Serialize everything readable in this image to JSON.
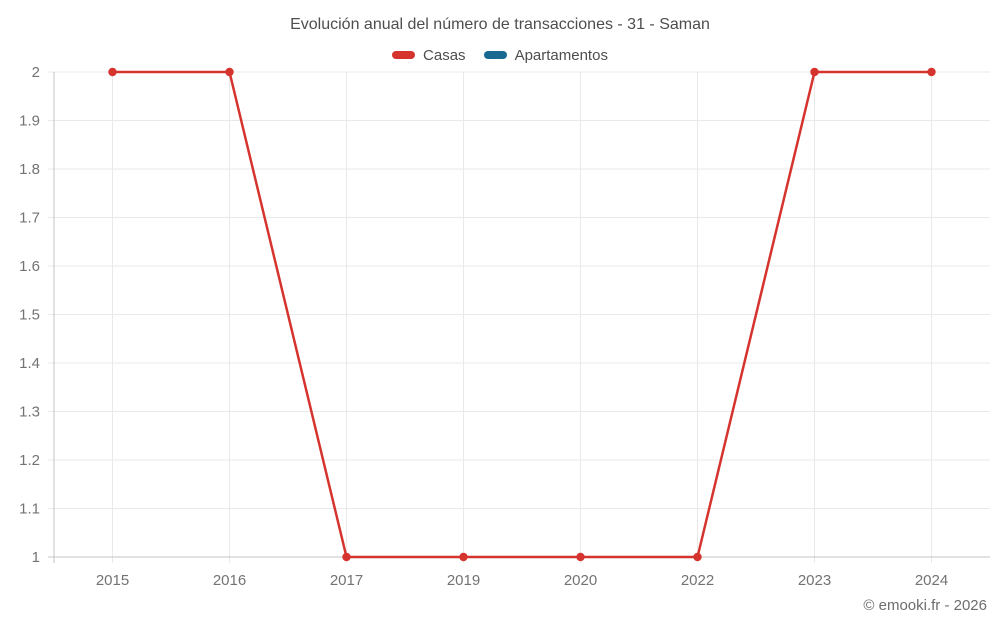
{
  "header": {
    "title": "Evolución anual del número de transacciones - 31 - Saman"
  },
  "legend": {
    "items": [
      {
        "label": "Casas",
        "color": "#d5342e"
      },
      {
        "label": "Apartamentos",
        "color": "#17698f"
      }
    ]
  },
  "footer": {
    "copyright": "© emooki.fr - 2026"
  },
  "colors": {
    "background": "#ffffff",
    "grid": "#e9e9e9",
    "axis": "#c4c4c4",
    "tick_label": "#737373",
    "title_text": "#4e4e4e",
    "footer_text": "#6d6d6d"
  },
  "chart_data": {
    "type": "line",
    "title": "Evolución anual del número de transacciones - 31 - Saman",
    "categories": [
      "2015",
      "2016",
      "2017",
      "2019",
      "2020",
      "2022",
      "2023",
      "2024"
    ],
    "series": [
      {
        "name": "Casas",
        "color": "#d5342e",
        "values": [
          2,
          2,
          1,
          1,
          1,
          1,
          2,
          2
        ]
      },
      {
        "name": "Apartamentos",
        "color": "#17698f",
        "values": []
      }
    ],
    "xlabel": "",
    "ylabel": "",
    "ylim": [
      1,
      2
    ],
    "ytick_step": 0.1,
    "ytick_labels": [
      "1",
      "1.1",
      "1.2",
      "1.3",
      "1.4",
      "1.5",
      "1.6",
      "1.7",
      "1.8",
      "1.9",
      "2"
    ],
    "grid": true,
    "legend_position": "top",
    "line_width": 2.5,
    "point_radius": 4.2
  }
}
